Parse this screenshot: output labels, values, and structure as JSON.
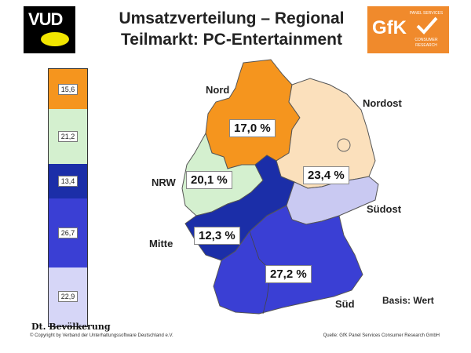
{
  "header": {
    "logo_text": "VUD",
    "title_line1": "Umsatzverteilung – Regional",
    "title_line2": "Teilmarkt: PC-Entertainment",
    "gfk_text": "GfK",
    "gfk_sub_top": "PANEL SERVICES",
    "gfk_sub_bottom": "CONSUMER RESEARCH"
  },
  "chart_data": {
    "type": "choropleth_map",
    "series": [
      {
        "name": "Umsatz",
        "values": [
          {
            "region": "Nord",
            "value": 17.0,
            "label": "17,0 %",
            "color": "#f5951e"
          },
          {
            "region": "Nordost",
            "value": 23.4,
            "label": "23,4 %",
            "color": "#fbe0bc"
          },
          {
            "region": "NRW",
            "value": 20.1,
            "label": "20,1 %",
            "color": "#d4f0cf"
          },
          {
            "region": "Mitte",
            "value": 12.3,
            "label": "12,3 %",
            "color": "#1b2ea8"
          },
          {
            "region": "Südost",
            "value": null,
            "label": "",
            "color": "#c9c9f2"
          },
          {
            "region": "Süd",
            "value": 27.2,
            "label": "27,2 %",
            "color": "#3a3fd4"
          }
        ]
      },
      {
        "name": "Dt. Bevölkerung",
        "values": [
          {
            "value": 15.6,
            "label": "15,6",
            "color": "#f5951e"
          },
          {
            "value": 21.2,
            "label": "21,2",
            "color": "#d4f0cf"
          },
          {
            "value": 13.4,
            "label": "13,4",
            "color": "#1b2ea8"
          },
          {
            "value": 26.7,
            "label": "26,7",
            "color": "#3a3fd4"
          },
          {
            "value": 22.9,
            "label": "22,9",
            "color": "#d6d6f7"
          }
        ]
      }
    ],
    "annotations": {
      "basis": "Basis: Wert"
    }
  },
  "region_names": {
    "nord": "Nord",
    "nordost": "Nordost",
    "nrw": "NRW",
    "mitte": "Mitte",
    "suedost": "Südost",
    "sued": "Süd"
  },
  "footer": {
    "population_title": "Dt. Bevölkerung",
    "copyright": "© Copyright by Verband der Unterhaltungssoftware Deutschland e.V.",
    "source": "Quelle: GfK Panel Services Consumer Research GmbH"
  }
}
